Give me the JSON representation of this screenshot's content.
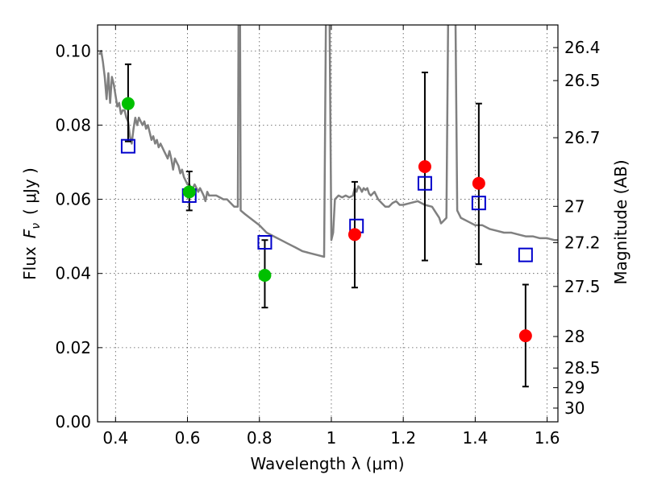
{
  "chart_data": {
    "type": "scatter",
    "xlabel": "Wavelength  λ (μm)",
    "ylabel": "Flux  F_ν  ( μJy )",
    "ylabel_main": "Flux",
    "ylabel_symbol": "F",
    "ylabel_subscript": "ν",
    "ylabel_unit": "( μJy )",
    "y2label": "Magnitude (AB)",
    "xlim": [
      0.35,
      1.63
    ],
    "ylim": [
      0.0,
      0.107
    ],
    "grid": true,
    "x_ticks": [
      0.4,
      0.6,
      0.8,
      1.0,
      1.2,
      1.4,
      1.6
    ],
    "x_tick_labels": [
      "0.4",
      "0.6",
      "0.8",
      "1",
      "1.2",
      "1.4",
      "1.6"
    ],
    "y_ticks": [
      0.0,
      0.02,
      0.04,
      0.06,
      0.08,
      0.1
    ],
    "y_tick_labels": [
      "0.00",
      "0.02",
      "0.04",
      "0.06",
      "0.08",
      "0.10"
    ],
    "y2_ticks": [
      {
        "label": "26.4",
        "flux": 0.1009
      },
      {
        "label": "26.5",
        "flux": 0.092
      },
      {
        "label": "26.7",
        "flux": 0.0766
      },
      {
        "label": "27",
        "flux": 0.0581
      },
      {
        "label": "27.2",
        "flux": 0.0483
      },
      {
        "label": "27.5",
        "flux": 0.0365
      },
      {
        "label": "28",
        "flux": 0.023
      },
      {
        "label": "28.5",
        "flux": 0.0145
      },
      {
        "label": "29",
        "flux": 0.0092
      },
      {
        "label": "30",
        "flux": 0.0037
      }
    ],
    "series": [
      {
        "kind": "line",
        "color": "#808080",
        "points": [
          [
            0.355,
            0.099
          ],
          [
            0.36,
            0.1
          ],
          [
            0.365,
            0.097
          ],
          [
            0.37,
            0.093
          ],
          [
            0.375,
            0.087
          ],
          [
            0.38,
            0.094
          ],
          [
            0.385,
            0.086
          ],
          [
            0.39,
            0.093
          ],
          [
            0.395,
            0.091
          ],
          [
            0.4,
            0.088
          ],
          [
            0.405,
            0.085
          ],
          [
            0.41,
            0.086
          ],
          [
            0.415,
            0.083
          ],
          [
            0.42,
            0.084
          ],
          [
            0.425,
            0.084
          ],
          [
            0.43,
            0.082
          ],
          [
            0.435,
            0.081
          ],
          [
            0.44,
            0.077
          ],
          [
            0.445,
            0.075
          ],
          [
            0.45,
            0.079
          ],
          [
            0.455,
            0.082
          ],
          [
            0.46,
            0.08
          ],
          [
            0.465,
            0.082
          ],
          [
            0.47,
            0.081
          ],
          [
            0.475,
            0.08
          ],
          [
            0.48,
            0.081
          ],
          [
            0.485,
            0.079
          ],
          [
            0.49,
            0.08
          ],
          [
            0.495,
            0.078
          ],
          [
            0.5,
            0.076
          ],
          [
            0.505,
            0.077
          ],
          [
            0.51,
            0.075
          ],
          [
            0.515,
            0.076
          ],
          [
            0.52,
            0.074
          ],
          [
            0.525,
            0.075
          ],
          [
            0.53,
            0.074
          ],
          [
            0.535,
            0.073
          ],
          [
            0.54,
            0.072
          ],
          [
            0.545,
            0.071
          ],
          [
            0.55,
            0.073
          ],
          [
            0.555,
            0.071
          ],
          [
            0.56,
            0.068
          ],
          [
            0.565,
            0.071
          ],
          [
            0.57,
            0.07
          ],
          [
            0.575,
            0.069
          ],
          [
            0.58,
            0.067
          ],
          [
            0.585,
            0.068
          ],
          [
            0.59,
            0.066
          ],
          [
            0.595,
            0.065
          ],
          [
            0.6,
            0.064
          ],
          [
            0.605,
            0.064
          ],
          [
            0.61,
            0.063
          ],
          [
            0.615,
            0.063
          ],
          [
            0.62,
            0.064
          ],
          [
            0.625,
            0.063
          ],
          [
            0.63,
            0.062
          ],
          [
            0.635,
            0.063
          ],
          [
            0.64,
            0.062
          ],
          [
            0.645,
            0.061
          ],
          [
            0.65,
            0.0595
          ],
          [
            0.655,
            0.062
          ],
          [
            0.66,
            0.061
          ],
          [
            0.67,
            0.061
          ],
          [
            0.68,
            0.061
          ],
          [
            0.69,
            0.0605
          ],
          [
            0.7,
            0.06
          ],
          [
            0.71,
            0.06
          ],
          [
            0.72,
            0.059
          ],
          [
            0.73,
            0.058
          ],
          [
            0.74,
            0.058
          ],
          [
            0.742,
            0.11
          ],
          [
            0.746,
            0.11
          ],
          [
            0.748,
            0.057
          ],
          [
            0.76,
            0.056
          ],
          [
            0.78,
            0.0545
          ],
          [
            0.8,
            0.053
          ],
          [
            0.82,
            0.051
          ],
          [
            0.84,
            0.05
          ],
          [
            0.86,
            0.049
          ],
          [
            0.88,
            0.048
          ],
          [
            0.9,
            0.047
          ],
          [
            0.92,
            0.046
          ],
          [
            0.94,
            0.0455
          ],
          [
            0.96,
            0.045
          ],
          [
            0.98,
            0.0445
          ],
          [
            0.985,
            0.11
          ],
          [
            0.995,
            0.11
          ],
          [
            1.0,
            0.049
          ],
          [
            1.005,
            0.051
          ],
          [
            1.01,
            0.06
          ],
          [
            1.02,
            0.061
          ],
          [
            1.03,
            0.0605
          ],
          [
            1.04,
            0.061
          ],
          [
            1.05,
            0.0605
          ],
          [
            1.06,
            0.061
          ],
          [
            1.065,
            0.063
          ],
          [
            1.07,
            0.062
          ],
          [
            1.075,
            0.0635
          ],
          [
            1.08,
            0.063
          ],
          [
            1.085,
            0.062
          ],
          [
            1.09,
            0.063
          ],
          [
            1.095,
            0.0625
          ],
          [
            1.1,
            0.063
          ],
          [
            1.105,
            0.0615
          ],
          [
            1.11,
            0.061
          ],
          [
            1.12,
            0.062
          ],
          [
            1.13,
            0.06
          ],
          [
            1.14,
            0.059
          ],
          [
            1.15,
            0.058
          ],
          [
            1.16,
            0.058
          ],
          [
            1.17,
            0.059
          ],
          [
            1.18,
            0.0595
          ],
          [
            1.19,
            0.0585
          ],
          [
            1.2,
            0.0585
          ],
          [
            1.22,
            0.059
          ],
          [
            1.24,
            0.0595
          ],
          [
            1.26,
            0.0585
          ],
          [
            1.28,
            0.058
          ],
          [
            1.29,
            0.0565
          ],
          [
            1.3,
            0.055
          ],
          [
            1.305,
            0.0535
          ],
          [
            1.31,
            0.054
          ],
          [
            1.32,
            0.055
          ],
          [
            1.325,
            0.11
          ],
          [
            1.345,
            0.11
          ],
          [
            1.35,
            0.057
          ],
          [
            1.36,
            0.055
          ],
          [
            1.38,
            0.054
          ],
          [
            1.4,
            0.053
          ],
          [
            1.42,
            0.053
          ],
          [
            1.44,
            0.052
          ],
          [
            1.46,
            0.0515
          ],
          [
            1.48,
            0.051
          ],
          [
            1.5,
            0.051
          ],
          [
            1.52,
            0.0505
          ],
          [
            1.54,
            0.05
          ],
          [
            1.56,
            0.05
          ],
          [
            1.58,
            0.0495
          ],
          [
            1.6,
            0.0495
          ],
          [
            1.62,
            0.049
          ],
          [
            1.63,
            0.049
          ]
        ]
      },
      {
        "kind": "points-with-errors",
        "color": "#00c000",
        "points": [
          {
            "x": 0.435,
            "y": 0.0858,
            "yerr_low": 0.0756,
            "yerr_high": 0.0964
          },
          {
            "x": 0.605,
            "y": 0.062,
            "yerr_low": 0.057,
            "yerr_high": 0.0675
          },
          {
            "x": 0.815,
            "y": 0.0395,
            "yerr_low": 0.0308,
            "yerr_high": 0.049
          }
        ]
      },
      {
        "kind": "points-with-errors",
        "color": "#ff0000",
        "points": [
          {
            "x": 1.065,
            "y": 0.0505,
            "yerr_low": 0.0362,
            "yerr_high": 0.0647
          },
          {
            "x": 1.26,
            "y": 0.0688,
            "yerr_low": 0.0435,
            "yerr_high": 0.0942
          },
          {
            "x": 1.41,
            "y": 0.0643,
            "yerr_low": 0.0425,
            "yerr_high": 0.0858
          },
          {
            "x": 1.54,
            "y": 0.0232,
            "yerr_low": 0.0095,
            "yerr_high": 0.037
          }
        ]
      },
      {
        "kind": "open-squares",
        "color": "#0000cc",
        "points": [
          [
            0.435,
            0.0743
          ],
          [
            0.605,
            0.061
          ],
          [
            0.815,
            0.0484
          ],
          [
            1.07,
            0.0528
          ],
          [
            1.26,
            0.0643
          ],
          [
            1.41,
            0.059
          ],
          [
            1.54,
            0.045
          ]
        ]
      }
    ]
  }
}
